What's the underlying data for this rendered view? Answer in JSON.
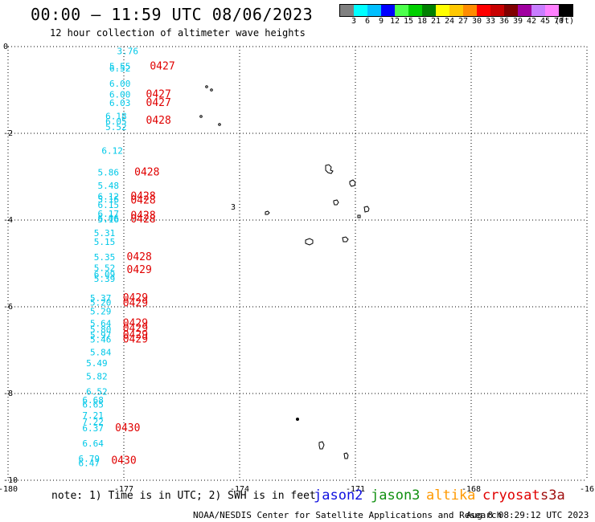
{
  "header": {
    "title": "00:00 – 11:59 UTC 08/06/2023",
    "subtitle": "12 hour collection of altimeter wave heights"
  },
  "scale": {
    "colors": [
      "#808080",
      "#00ffff",
      "#00bfff",
      "#0000ff",
      "#4cff4c",
      "#00d000",
      "#008000",
      "#ffff00",
      "#ffc800",
      "#ff8c00",
      "#ff0000",
      "#c80000",
      "#800000",
      "#a000a0",
      "#c87dff",
      "#ff80ff",
      "#000000"
    ],
    "labels": [
      "3",
      "6",
      "9",
      "12",
      "15",
      "18",
      "21",
      "24",
      "27",
      "30",
      "33",
      "36",
      "39",
      "42",
      "45",
      "70",
      "(ft)"
    ]
  },
  "axes": {
    "x_ticks": [
      "-180",
      "-177",
      "-174",
      "-171",
      "-168",
      "-16"
    ],
    "y_ticks": [
      "0",
      "-2",
      "-4",
      "-6",
      "-8",
      "-10"
    ],
    "lon_range": [
      -180,
      -165
    ],
    "lat_range": [
      -10,
      0
    ]
  },
  "chart_data": {
    "type": "scatter",
    "wave_heights": [
      {
        "lon": -176.9,
        "lat": -0.1,
        "value": "3.76"
      },
      {
        "lon": -177.1,
        "lat": -0.45,
        "value": "5.55"
      },
      {
        "lon": -177.1,
        "lat": -0.5,
        "value": "6.52"
      },
      {
        "lon": -177.1,
        "lat": -0.85,
        "value": "6.00"
      },
      {
        "lon": -177.1,
        "lat": -1.1,
        "value": "6.00"
      },
      {
        "lon": -177.1,
        "lat": -1.3,
        "value": "6.03"
      },
      {
        "lon": -177.2,
        "lat": -1.6,
        "value": "6.18"
      },
      {
        "lon": -177.2,
        "lat": -1.72,
        "value": "6.05"
      },
      {
        "lon": -177.2,
        "lat": -1.85,
        "value": "5.52"
      },
      {
        "lon": -177.3,
        "lat": -2.4,
        "value": "6.12"
      },
      {
        "lon": -177.4,
        "lat": -2.9,
        "value": "5.86"
      },
      {
        "lon": -177.4,
        "lat": -3.2,
        "value": "5.48"
      },
      {
        "lon": -177.4,
        "lat": -3.45,
        "value": "6.12"
      },
      {
        "lon": -177.4,
        "lat": -3.52,
        "value": "5.16"
      },
      {
        "lon": -177.4,
        "lat": -3.65,
        "value": "6.15"
      },
      {
        "lon": -177.4,
        "lat": -3.85,
        "value": "6.17"
      },
      {
        "lon": -177.4,
        "lat": -3.95,
        "value": "6.06"
      },
      {
        "lon": -177.4,
        "lat": -3.98,
        "value": "5.16"
      },
      {
        "lon": -177.5,
        "lat": -4.3,
        "value": "5.31"
      },
      {
        "lon": -177.5,
        "lat": -4.5,
        "value": "5.15"
      },
      {
        "lon": -177.5,
        "lat": -4.85,
        "value": "5.35"
      },
      {
        "lon": -177.5,
        "lat": -5.1,
        "value": "5.52"
      },
      {
        "lon": -177.5,
        "lat": -5.25,
        "value": "6.09"
      },
      {
        "lon": -177.5,
        "lat": -5.35,
        "value": "5.39"
      },
      {
        "lon": -177.6,
        "lat": -5.8,
        "value": "5.37"
      },
      {
        "lon": -177.6,
        "lat": -5.9,
        "value": "5.20"
      },
      {
        "lon": -177.6,
        "lat": -6.1,
        "value": "5.29"
      },
      {
        "lon": -177.6,
        "lat": -6.38,
        "value": "5.64"
      },
      {
        "lon": -177.6,
        "lat": -6.52,
        "value": "5.80"
      },
      {
        "lon": -177.6,
        "lat": -6.65,
        "value": "5.97"
      },
      {
        "lon": -177.6,
        "lat": -6.75,
        "value": "5.46"
      },
      {
        "lon": -177.6,
        "lat": -7.05,
        "value": "5.84"
      },
      {
        "lon": -177.7,
        "lat": -7.3,
        "value": "5.49"
      },
      {
        "lon": -177.7,
        "lat": -7.6,
        "value": "5.82"
      },
      {
        "lon": -177.7,
        "lat": -7.95,
        "value": "6.52"
      },
      {
        "lon": -177.8,
        "lat": -8.15,
        "value": "6.68"
      },
      {
        "lon": -177.8,
        "lat": -8.25,
        "value": "6.65"
      },
      {
        "lon": -177.8,
        "lat": -8.5,
        "value": "7.21"
      },
      {
        "lon": -177.8,
        "lat": -8.65,
        "value": "7.22"
      },
      {
        "lon": -177.8,
        "lat": -8.8,
        "value": "6.37"
      },
      {
        "lon": -177.8,
        "lat": -9.15,
        "value": "6.64"
      },
      {
        "lon": -177.9,
        "lat": -9.5,
        "value": "6.79"
      },
      {
        "lon": -177.9,
        "lat": -9.6,
        "value": "6.47"
      }
    ],
    "times": [
      {
        "lon": -176.0,
        "lat": -0.45,
        "value": "0427"
      },
      {
        "lon": -176.1,
        "lat": -1.1,
        "value": "0427"
      },
      {
        "lon": -176.1,
        "lat": -1.3,
        "value": "0427"
      },
      {
        "lon": -176.1,
        "lat": -1.7,
        "value": "0428"
      },
      {
        "lon": -176.4,
        "lat": -2.9,
        "value": "0428"
      },
      {
        "lon": -176.5,
        "lat": -3.45,
        "value": "0428"
      },
      {
        "lon": -176.5,
        "lat": -3.55,
        "value": "0428"
      },
      {
        "lon": -176.5,
        "lat": -3.9,
        "value": "0428"
      },
      {
        "lon": -176.5,
        "lat": -3.98,
        "value": "0428"
      },
      {
        "lon": -176.6,
        "lat": -4.85,
        "value": "0428"
      },
      {
        "lon": -176.6,
        "lat": -5.15,
        "value": "0429"
      },
      {
        "lon": -176.7,
        "lat": -5.8,
        "value": "0429"
      },
      {
        "lon": -176.7,
        "lat": -5.92,
        "value": "0429"
      },
      {
        "lon": -176.7,
        "lat": -6.38,
        "value": "0429"
      },
      {
        "lon": -176.7,
        "lat": -6.5,
        "value": "0429"
      },
      {
        "lon": -176.7,
        "lat": -6.65,
        "value": "0429"
      },
      {
        "lon": -176.7,
        "lat": -6.75,
        "value": "0429"
      },
      {
        "lon": -176.9,
        "lat": -8.8,
        "value": "0430"
      },
      {
        "lon": -177.0,
        "lat": -9.55,
        "value": "0430"
      }
    ]
  },
  "stray_labels": [
    {
      "lon": -174.0,
      "lat": -3.7,
      "value": "3"
    }
  ],
  "note": "note:  1) Time is in UTC;  2) SWH is in feet",
  "satellites": [
    {
      "name": "jason2",
      "color": "#1010e0"
    },
    {
      "name": "jason3",
      "color": "#109010"
    },
    {
      "name": "altika",
      "color": "#ff9900"
    },
    {
      "name": "cryosat",
      "color": "#e00000"
    },
    {
      "name": "s3a",
      "color": "#a01010"
    }
  ],
  "footer": {
    "credit": "NOAA/NESDIS Center for Satellite Applications and Research",
    "timestamp": "Aug  8 08:29:12 UTC 2023"
  }
}
